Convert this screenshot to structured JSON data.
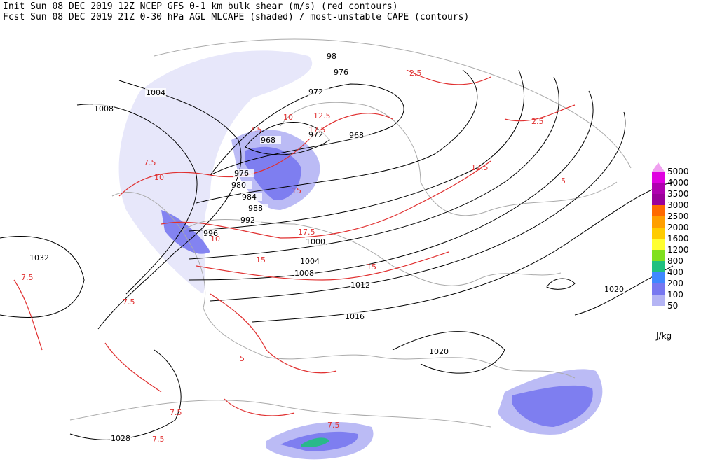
{
  "header": {
    "line1": "Init  Sun 08 DEC 2019 12Z  NCEP GFS 0-1 km bulk shear (m/s) (red contours)",
    "line2": "Fcst Sun 08 DEC 2019 21Z  0-30 hPa AGL MLCAPE (shaded) / most-unstable CAPE (contours)"
  },
  "isobar_labels": [
    "98",
    "976",
    "1004",
    "972",
    "1008",
    "972",
    "968",
    "968",
    "976",
    "980",
    "984",
    "988",
    "992",
    "996",
    "1000",
    "1004",
    "1008",
    "1012",
    "1016",
    "1020",
    "1020",
    "1032",
    "1028"
  ],
  "shear_labels": [
    "7.5",
    "7.5",
    "7.5",
    "7.5",
    "7.5",
    "7.5",
    "7.5",
    "10",
    "10",
    "10",
    "12.5",
    "12.5",
    "15",
    "15",
    "15",
    "17.5",
    "17.5",
    "2.5",
    "2.5",
    "5",
    "5"
  ],
  "colorbar": {
    "labels": [
      "5000",
      "4000",
      "3500",
      "3000",
      "2500",
      "2000",
      "1600",
      "1200",
      "800",
      "400",
      "200",
      "100",
      "50"
    ],
    "colors": [
      "#e000e0",
      "#b000b0",
      "#9a009a",
      "#ff6a00",
      "#ff9f00",
      "#ffcc00",
      "#ffff30",
      "#80e020",
      "#20c080",
      "#4088ff",
      "#7878f0",
      "#b4b4f4",
      "#e4e4fa"
    ],
    "above_color": "#f0a0f0",
    "units": "J/kg"
  }
}
